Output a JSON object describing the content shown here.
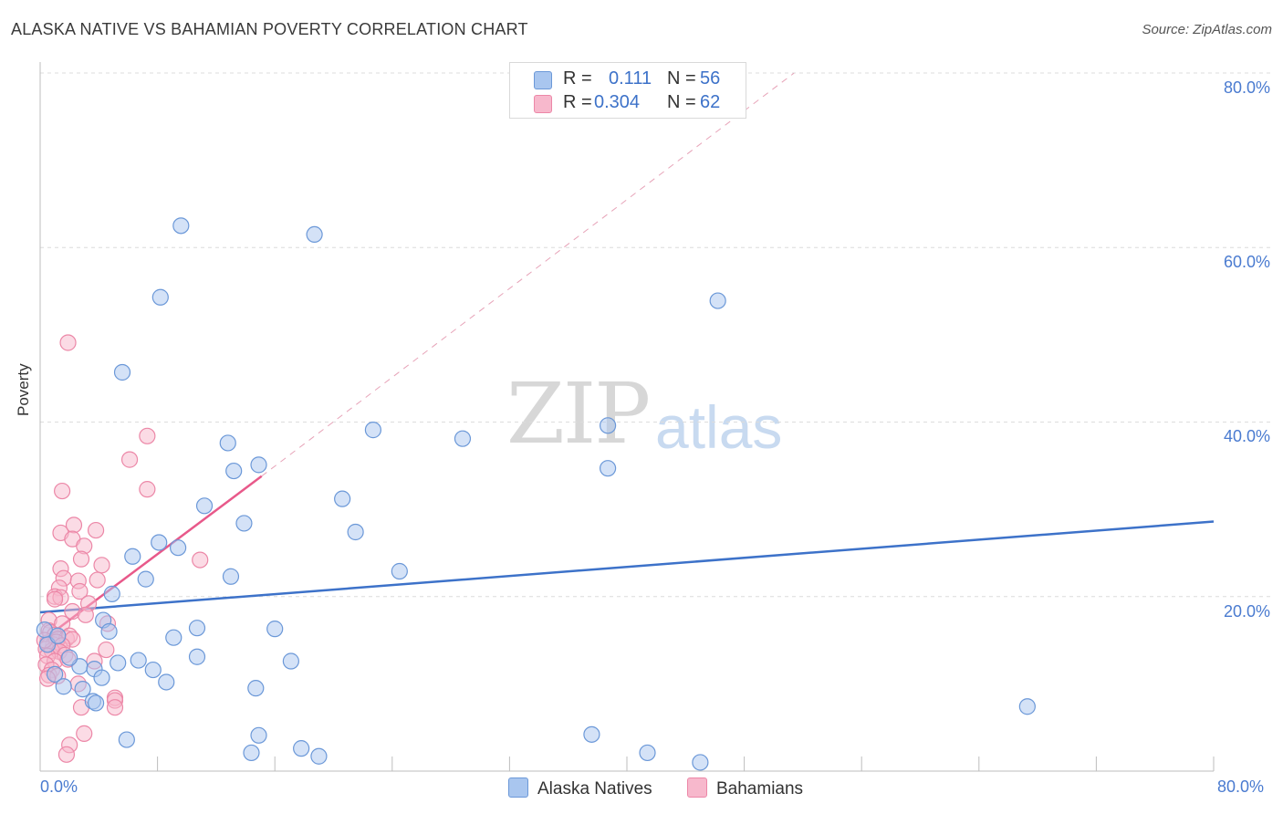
{
  "header": {
    "title": "ALASKA NATIVE VS BAHAMIAN POVERTY CORRELATION CHART",
    "source": "Source: ZipAtlas.com"
  },
  "watermark": {
    "zip": "ZIP",
    "atlas": "atlas"
  },
  "stats": {
    "rows": [
      {
        "r_label": "R =",
        "r_value": "0.111",
        "n_label": "N =",
        "n_value": "56",
        "color": "#a9c6ef"
      },
      {
        "r_label": "R =",
        "r_value": "0.304",
        "n_label": "N =",
        "n_value": "62",
        "color": "#f7b8cc"
      }
    ]
  },
  "legend": {
    "items": [
      "Alaska Natives",
      "Bahamians"
    ]
  },
  "chart_data": {
    "type": "scatter",
    "title": "ALASKA NATIVE VS BAHAMIAN POVERTY CORRELATION CHART",
    "xlabel": "",
    "ylabel": "Poverty",
    "xlim": [
      0,
      80
    ],
    "ylim": [
      0,
      80
    ],
    "x_tick_labels": [
      "0.0%",
      "80.0%"
    ],
    "y_tick_labels": [
      "20.0%",
      "40.0%",
      "60.0%",
      "80.0%"
    ],
    "grid": true,
    "colors": {
      "alaska": "#3d72c9",
      "bahamian": "#e8598a"
    },
    "series": [
      {
        "name": "Alaska Natives",
        "color": "#a9c6ef",
        "stroke": "#6b98d8",
        "points": [
          [
            9.6,
            62.5
          ],
          [
            18.7,
            61.5
          ],
          [
            46.2,
            53.9
          ],
          [
            8.2,
            54.3
          ],
          [
            5.6,
            45.7
          ],
          [
            22.7,
            39.1
          ],
          [
            28.8,
            38.1
          ],
          [
            38.7,
            34.7
          ],
          [
            38.7,
            39.6
          ],
          [
            12.8,
            37.6
          ],
          [
            14.9,
            35.1
          ],
          [
            13.2,
            34.4
          ],
          [
            20.6,
            31.2
          ],
          [
            11.2,
            30.4
          ],
          [
            13.9,
            28.4
          ],
          [
            21.5,
            27.4
          ],
          [
            8.1,
            26.2
          ],
          [
            9.4,
            25.6
          ],
          [
            6.3,
            24.6
          ],
          [
            24.5,
            22.9
          ],
          [
            7.2,
            22.0
          ],
          [
            13.0,
            22.3
          ],
          [
            4.9,
            20.3
          ],
          [
            4.3,
            17.3
          ],
          [
            4.7,
            16.0
          ],
          [
            10.7,
            16.4
          ],
          [
            16.0,
            16.3
          ],
          [
            9.1,
            15.3
          ],
          [
            10.7,
            13.1
          ],
          [
            17.1,
            12.6
          ],
          [
            6.7,
            12.7
          ],
          [
            5.3,
            12.4
          ],
          [
            7.7,
            11.6
          ],
          [
            2.7,
            12.0
          ],
          [
            3.7,
            11.7
          ],
          [
            1.0,
            11.1
          ],
          [
            1.6,
            9.7
          ],
          [
            2.9,
            9.4
          ],
          [
            4.2,
            10.7
          ],
          [
            8.6,
            10.2
          ],
          [
            14.7,
            9.5
          ],
          [
            3.6,
            8.0
          ],
          [
            3.8,
            7.8
          ],
          [
            67.3,
            7.4
          ],
          [
            5.9,
            3.6
          ],
          [
            14.9,
            4.1
          ],
          [
            37.6,
            4.2
          ],
          [
            14.4,
            2.1
          ],
          [
            17.8,
            2.6
          ],
          [
            19.0,
            1.7
          ],
          [
            41.4,
            2.1
          ],
          [
            45.0,
            1.0
          ],
          [
            0.5,
            14.5
          ],
          [
            0.3,
            16.2
          ],
          [
            1.2,
            15.5
          ],
          [
            2.0,
            13.0
          ]
        ]
      },
      {
        "name": "Bahamians",
        "color": "#f7b8cc",
        "stroke": "#ec87a7",
        "points": [
          [
            1.9,
            49.1
          ],
          [
            7.3,
            38.4
          ],
          [
            6.1,
            35.7
          ],
          [
            7.3,
            32.3
          ],
          [
            1.5,
            32.1
          ],
          [
            2.3,
            28.2
          ],
          [
            1.4,
            27.3
          ],
          [
            3.8,
            27.6
          ],
          [
            2.2,
            26.6
          ],
          [
            3.0,
            25.8
          ],
          [
            2.8,
            24.3
          ],
          [
            10.9,
            24.2
          ],
          [
            4.2,
            23.6
          ],
          [
            1.4,
            23.2
          ],
          [
            1.6,
            22.1
          ],
          [
            2.6,
            21.8
          ],
          [
            3.9,
            21.9
          ],
          [
            1.3,
            21.0
          ],
          [
            1.0,
            20.0
          ],
          [
            2.7,
            20.6
          ],
          [
            1.4,
            19.9
          ],
          [
            3.3,
            19.2
          ],
          [
            2.2,
            18.3
          ],
          [
            3.1,
            17.9
          ],
          [
            0.6,
            17.3
          ],
          [
            1.5,
            16.9
          ],
          [
            4.6,
            16.9
          ],
          [
            0.6,
            16.1
          ],
          [
            0.7,
            15.9
          ],
          [
            1.0,
            15.6
          ],
          [
            1.2,
            15.1
          ],
          [
            1.8,
            15.2
          ],
          [
            2.0,
            15.5
          ],
          [
            2.2,
            15.1
          ],
          [
            0.5,
            14.7
          ],
          [
            0.9,
            14.5
          ],
          [
            1.1,
            14.8
          ],
          [
            1.5,
            14.4
          ],
          [
            0.4,
            14.0
          ],
          [
            0.8,
            13.8
          ],
          [
            1.3,
            13.7
          ],
          [
            1.7,
            13.3
          ],
          [
            0.5,
            13.2
          ],
          [
            1.0,
            12.6
          ],
          [
            1.9,
            12.8
          ],
          [
            3.7,
            12.6
          ],
          [
            4.5,
            13.9
          ],
          [
            0.4,
            12.2
          ],
          [
            0.8,
            11.6
          ],
          [
            0.6,
            11.0
          ],
          [
            1.2,
            10.9
          ],
          [
            0.5,
            10.6
          ],
          [
            2.6,
            10.0
          ],
          [
            5.1,
            8.4
          ],
          [
            5.1,
            8.1
          ],
          [
            2.8,
            7.3
          ],
          [
            5.1,
            7.3
          ],
          [
            3.0,
            4.3
          ],
          [
            2.0,
            3.0
          ],
          [
            1.8,
            1.9
          ],
          [
            1.0,
            19.7
          ],
          [
            0.3,
            15.0
          ]
        ]
      }
    ],
    "trend_lines": [
      {
        "name": "Alaska Natives",
        "x": [
          0,
          80
        ],
        "y": [
          18.2,
          28.6
        ],
        "style": "solid"
      },
      {
        "name": "Bahamians",
        "x": [
          0,
          15.1
        ],
        "y": [
          14.8,
          33.8
        ],
        "style": "solid"
      },
      {
        "name": "Bahamians (extrapolated)",
        "x": [
          15.1,
          51.4
        ],
        "y": [
          33.8,
          80
        ],
        "style": "dashed"
      }
    ]
  }
}
